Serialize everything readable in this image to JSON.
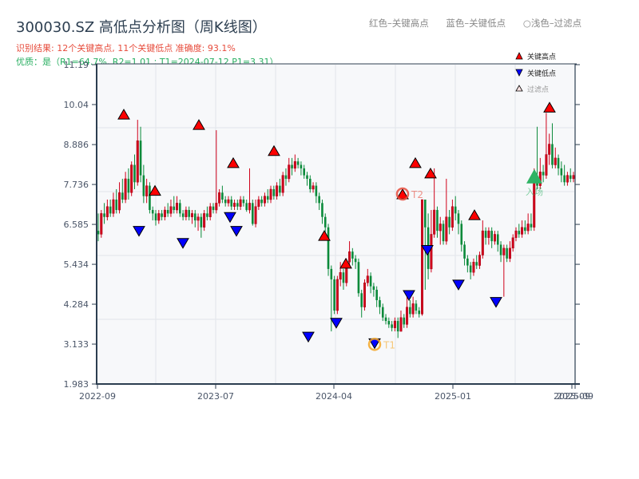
{
  "header": {
    "title": "300030.SZ 高低点分析图（周K线图）",
    "result_line": "识别结果: 12个关键高点, 11个关键低点  准确度: 93.1%",
    "quality_line": "优质：是（R1=64.7%, R2=1.01 ; T1=2024-07-12 P1=3.31）"
  },
  "top_legend": {
    "red": "红色–关键高点",
    "blue": "蓝色–关键低点",
    "light": "○浅色–过滤点"
  },
  "plot_legend": {
    "high": "关键高点",
    "low": "关键低点",
    "filtered": "过滤点"
  },
  "colors": {
    "up": "#d0021b",
    "down": "#0a8a3a",
    "high_marker": "#ff0000",
    "low_marker": "#0000ff",
    "entry_marker": "#2eb364",
    "t1_ring": "#f5a623",
    "t2_ring": "#e74c3c",
    "axis": "#2c3e50",
    "plot_bg": "#f7f8fa",
    "grid": "#e2e5ea"
  },
  "chart_data": {
    "type": "candlestick",
    "title": "300030.SZ 高低点分析图（周K线图）",
    "xlabel": "",
    "ylabel": "",
    "ylim": [
      1.983,
      11.19
    ],
    "y_ticks": [
      "1.983",
      "3.133",
      "4.284",
      "5.434",
      "6.585",
      "7.736",
      "8.886",
      "10.04",
      "11.19"
    ],
    "x_ticks": [
      {
        "label": "2022-09",
        "x": 122
      },
      {
        "label": "2023-07",
        "x": 270
      },
      {
        "label": "2024-04",
        "x": 418
      },
      {
        "label": "2025-01",
        "x": 567
      },
      {
        "label": "2025-09",
        "x": 716
      },
      {
        "label": "2025-09",
        "x": 720
      }
    ],
    "grid": true,
    "legend_position": "upper right",
    "candles": [
      [
        6.4,
        6.3,
        6.9,
        6.1
      ],
      [
        6.3,
        6.9,
        7.0,
        6.2
      ],
      [
        6.9,
        6.8,
        7.2,
        6.6
      ],
      [
        6.8,
        7.1,
        7.3,
        6.7
      ],
      [
        7.1,
        6.9,
        7.3,
        6.8
      ],
      [
        6.9,
        7.3,
        7.5,
        6.8
      ],
      [
        7.3,
        7.0,
        7.6,
        6.9
      ],
      [
        7.0,
        7.5,
        7.8,
        6.9
      ],
      [
        7.5,
        7.3,
        7.9,
        7.2
      ],
      [
        7.3,
        7.9,
        8.1,
        7.2
      ],
      [
        7.9,
        7.5,
        8.2,
        7.3
      ],
      [
        7.5,
        8.3,
        8.4,
        7.4
      ],
      [
        8.3,
        7.8,
        8.6,
        7.6
      ],
      [
        7.8,
        9.0,
        9.6,
        7.7
      ],
      [
        9.0,
        8.0,
        9.4,
        7.8
      ],
      [
        8.0,
        7.4,
        8.3,
        7.2
      ],
      [
        7.4,
        7.7,
        7.9,
        7.2
      ],
      [
        7.7,
        7.0,
        7.8,
        6.9
      ],
      [
        7.0,
        6.9,
        7.1,
        6.7
      ],
      [
        6.9,
        6.7,
        7.0,
        6.55
      ],
      [
        6.7,
        6.9,
        7.0,
        6.6
      ],
      [
        6.9,
        6.8,
        7.0,
        6.7
      ],
      [
        6.8,
        7.0,
        7.1,
        6.7
      ],
      [
        7.0,
        6.9,
        7.2,
        6.8
      ],
      [
        6.9,
        7.1,
        7.3,
        6.8
      ],
      [
        7.1,
        7.0,
        7.4,
        6.9
      ],
      [
        7.0,
        7.2,
        7.4,
        6.9
      ],
      [
        7.2,
        6.9,
        7.3,
        6.8
      ],
      [
        6.9,
        6.8,
        7.0,
        6.7
      ],
      [
        6.8,
        7.0,
        7.1,
        6.7
      ],
      [
        7.0,
        6.8,
        7.1,
        6.7
      ],
      [
        6.8,
        6.9,
        7.0,
        6.6
      ],
      [
        6.9,
        6.7,
        7.0,
        6.5
      ],
      [
        6.7,
        6.8,
        6.9,
        6.4
      ],
      [
        6.8,
        6.5,
        6.9,
        6.2
      ],
      [
        6.5,
        6.9,
        7.0,
        6.4
      ],
      [
        6.9,
        6.8,
        7.1,
        6.7
      ],
      [
        6.8,
        7.1,
        7.2,
        6.7
      ],
      [
        7.1,
        7.0,
        7.2,
        6.9
      ],
      [
        7.0,
        7.2,
        9.3,
        6.9
      ],
      [
        7.2,
        7.5,
        7.6,
        7.1
      ],
      [
        7.5,
        7.3,
        7.7,
        7.2
      ],
      [
        7.3,
        7.2,
        7.4,
        7.1
      ],
      [
        7.2,
        7.3,
        7.4,
        7.1
      ],
      [
        7.3,
        7.1,
        7.4,
        7.0
      ],
      [
        7.1,
        7.2,
        7.3,
        7.0
      ],
      [
        7.2,
        7.1,
        7.3,
        7.0
      ],
      [
        7.1,
        7.3,
        7.4,
        7.0
      ],
      [
        7.3,
        7.2,
        7.4,
        7.1
      ],
      [
        7.2,
        7.0,
        7.3,
        6.95
      ],
      [
        7.0,
        7.2,
        8.2,
        6.9
      ],
      [
        7.2,
        6.6,
        7.3,
        6.55
      ],
      [
        6.6,
        7.1,
        7.3,
        6.5
      ],
      [
        7.1,
        7.3,
        7.4,
        7.0
      ],
      [
        7.3,
        7.2,
        7.4,
        7.1
      ],
      [
        7.2,
        7.4,
        7.5,
        7.1
      ],
      [
        7.4,
        7.3,
        7.6,
        7.2
      ],
      [
        7.3,
        7.6,
        7.7,
        7.2
      ],
      [
        7.6,
        7.4,
        7.7,
        7.3
      ],
      [
        7.4,
        7.7,
        7.8,
        7.3
      ],
      [
        7.7,
        7.5,
        7.9,
        7.4
      ],
      [
        7.5,
        8.0,
        8.1,
        7.4
      ],
      [
        8.0,
        7.9,
        8.2,
        7.7
      ],
      [
        7.9,
        8.3,
        8.5,
        7.8
      ],
      [
        8.3,
        8.2,
        8.5,
        8.0
      ],
      [
        8.2,
        8.4,
        8.6,
        8.1
      ],
      [
        8.4,
        8.3,
        8.5,
        8.2
      ],
      [
        8.3,
        8.2,
        8.4,
        8.0
      ],
      [
        8.2,
        8.0,
        8.3,
        7.9
      ],
      [
        8.0,
        7.9,
        8.1,
        7.7
      ],
      [
        7.9,
        7.6,
        8.0,
        7.5
      ],
      [
        7.6,
        7.7,
        7.8,
        7.5
      ],
      [
        7.7,
        7.4,
        7.8,
        7.2
      ],
      [
        7.4,
        7.2,
        7.5,
        7.0
      ],
      [
        7.2,
        6.8,
        7.3,
        6.6
      ],
      [
        6.8,
        6.5,
        6.9,
        6.3
      ],
      [
        6.5,
        5.3,
        6.6,
        5.1
      ],
      [
        5.3,
        5.0,
        5.4,
        3.5
      ],
      [
        5.0,
        4.1,
        5.1,
        4.0
      ],
      [
        4.1,
        5.0,
        5.1,
        4.0
      ],
      [
        5.0,
        5.2,
        5.5,
        4.8
      ],
      [
        5.2,
        4.9,
        5.3,
        4.7
      ],
      [
        4.9,
        5.5,
        5.6,
        4.8
      ],
      [
        5.5,
        5.8,
        6.1,
        5.4
      ],
      [
        5.8,
        5.6,
        5.9,
        5.4
      ],
      [
        5.6,
        5.5,
        5.7,
        5.3
      ],
      [
        5.5,
        4.6,
        5.6,
        4.5
      ],
      [
        4.6,
        4.2,
        4.7,
        3.9
      ],
      [
        4.2,
        4.9,
        5.0,
        4.1
      ],
      [
        4.9,
        5.1,
        5.3,
        4.8
      ],
      [
        5.1,
        4.8,
        5.2,
        4.6
      ],
      [
        4.8,
        4.7,
        4.9,
        4.5
      ],
      [
        4.7,
        4.4,
        4.8,
        4.2
      ],
      [
        4.4,
        4.2,
        4.5,
        4.0
      ],
      [
        4.2,
        3.9,
        4.3,
        3.8
      ],
      [
        3.9,
        3.8,
        4.0,
        3.7
      ],
      [
        3.8,
        3.7,
        3.9,
        3.6
      ],
      [
        3.7,
        3.6,
        3.8,
        3.5
      ],
      [
        3.6,
        3.8,
        3.9,
        3.5
      ],
      [
        3.8,
        3.5,
        3.9,
        3.31
      ],
      [
        3.5,
        3.9,
        4.1,
        3.5
      ],
      [
        3.9,
        3.7,
        4.0,
        3.6
      ],
      [
        3.7,
        4.2,
        4.5,
        3.6
      ],
      [
        4.2,
        4.0,
        4.4,
        3.9
      ],
      [
        4.0,
        4.3,
        4.5,
        3.9
      ],
      [
        4.3,
        4.1,
        4.4,
        4.0
      ],
      [
        4.1,
        4.0,
        4.2,
        3.9
      ],
      [
        4.0,
        7.3,
        7.3,
        3.95
      ],
      [
        7.3,
        6.5,
        7.0,
        4.7
      ],
      [
        6.5,
        5.3,
        6.9,
        5.0
      ],
      [
        5.3,
        6.3,
        7.0,
        5.2
      ],
      [
        6.3,
        7.0,
        8.2,
        6.2
      ],
      [
        7.0,
        6.4,
        7.1,
        6.2
      ],
      [
        6.4,
        6.6,
        6.8,
        6.0
      ],
      [
        6.6,
        6.1,
        6.7,
        6.0
      ],
      [
        6.1,
        6.8,
        7.9,
        6.0
      ],
      [
        6.8,
        6.5,
        7.0,
        6.3
      ],
      [
        6.5,
        7.1,
        7.3,
        6.4
      ],
      [
        7.1,
        6.9,
        7.4,
        6.7
      ],
      [
        6.9,
        6.6,
        7.0,
        6.3
      ],
      [
        6.6,
        6.0,
        6.7,
        5.8
      ],
      [
        6.0,
        5.6,
        6.1,
        5.4
      ],
      [
        5.6,
        5.4,
        5.7,
        5.2
      ],
      [
        5.4,
        5.2,
        5.5,
        5.0
      ],
      [
        5.2,
        5.5,
        5.6,
        5.1
      ],
      [
        5.5,
        5.4,
        5.7,
        5.3
      ],
      [
        5.4,
        5.7,
        5.8,
        5.3
      ],
      [
        5.7,
        6.4,
        6.7,
        5.6
      ],
      [
        6.4,
        6.2,
        6.5,
        6.0
      ],
      [
        6.2,
        6.4,
        6.5,
        6.0
      ],
      [
        6.4,
        6.1,
        6.5,
        5.9
      ],
      [
        6.1,
        6.3,
        6.4,
        6.0
      ],
      [
        6.3,
        6.0,
        6.4,
        5.8
      ],
      [
        6.0,
        5.7,
        6.1,
        5.5
      ],
      [
        5.7,
        5.9,
        6.0,
        4.5
      ],
      [
        5.9,
        5.6,
        6.0,
        5.5
      ],
      [
        5.6,
        5.9,
        6.1,
        5.5
      ],
      [
        5.9,
        6.2,
        6.3,
        5.8
      ],
      [
        6.2,
        6.4,
        6.5,
        6.1
      ],
      [
        6.4,
        6.3,
        6.6,
        6.2
      ],
      [
        6.3,
        6.5,
        6.7,
        6.2
      ],
      [
        6.5,
        6.4,
        6.7,
        6.3
      ],
      [
        6.4,
        6.6,
        6.9,
        6.3
      ],
      [
        6.6,
        6.5,
        6.9,
        6.4
      ],
      [
        6.5,
        7.9,
        8.2,
        6.4
      ],
      [
        7.9,
        7.7,
        9.4,
        7.6
      ],
      [
        7.7,
        8.1,
        8.5,
        7.6
      ],
      [
        8.1,
        8.0,
        8.3,
        7.8
      ],
      [
        8.0,
        8.6,
        9.8,
        7.9
      ],
      [
        8.6,
        8.9,
        9.2,
        8.3
      ],
      [
        8.9,
        8.3,
        9.5,
        8.2
      ],
      [
        8.3,
        8.5,
        8.8,
        8.2
      ],
      [
        8.5,
        8.2,
        8.6,
        8.0
      ],
      [
        8.2,
        8.0,
        8.4,
        7.8
      ],
      [
        8.0,
        7.8,
        8.3,
        7.7
      ],
      [
        7.8,
        8.0,
        8.1,
        7.7
      ],
      [
        8.0,
        7.9,
        8.2,
        7.8
      ],
      [
        7.9,
        8.0,
        8.1,
        7.8
      ]
    ],
    "key_highs": [
      {
        "x": 155,
        "price": 9.6
      },
      {
        "x": 194,
        "price": 7.4
      },
      {
        "x": 249,
        "price": 9.3
      },
      {
        "x": 292,
        "price": 8.2
      },
      {
        "x": 343,
        "price": 8.55
      },
      {
        "x": 406,
        "price": 6.1
      },
      {
        "x": 433,
        "price": 5.3
      },
      {
        "x": 504,
        "price": 7.3
      },
      {
        "x": 520,
        "price": 8.2
      },
      {
        "x": 539,
        "price": 7.9
      },
      {
        "x": 594,
        "price": 6.7
      },
      {
        "x": 688,
        "price": 9.8
      }
    ],
    "key_lows": [
      {
        "x": 174,
        "price": 6.55
      },
      {
        "x": 229,
        "price": 6.2
      },
      {
        "x": 288,
        "price": 6.95
      },
      {
        "x": 296,
        "price": 6.55
      },
      {
        "x": 386,
        "price": 3.5
      },
      {
        "x": 421,
        "price": 3.9
      },
      {
        "x": 469,
        "price": 3.31
      },
      {
        "x": 512,
        "price": 4.7
      },
      {
        "x": 535,
        "price": 6.0
      },
      {
        "x": 574,
        "price": 5.0
      },
      {
        "x": 621,
        "price": 4.5
      }
    ],
    "annotations": [
      {
        "label": "T1",
        "x": 469,
        "price": 3.31,
        "ring": "#f5a623"
      },
      {
        "label": "T2",
        "x": 504,
        "price": 7.3,
        "ring": "#e74c3c"
      },
      {
        "label": "入场",
        "x": 669,
        "price": 7.95,
        "color": "#2eb364"
      }
    ]
  }
}
